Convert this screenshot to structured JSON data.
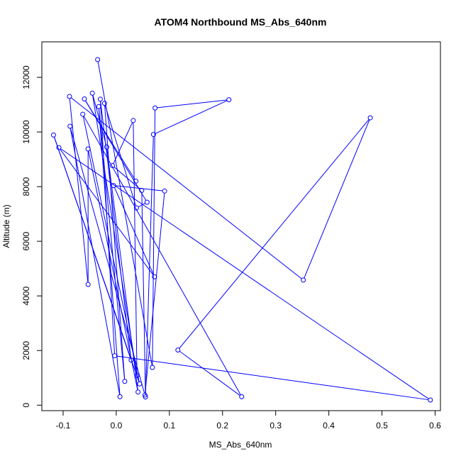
{
  "chart_data": {
    "type": "line",
    "title": "ATOM4 Northbound MS_Abs_640nm",
    "xlabel": "MS_Abs_640nm",
    "ylabel": "Altitude (m)",
    "xlim": [
      -0.14,
      0.61
    ],
    "ylim": [
      -200,
      13300
    ],
    "x_ticks": [
      -0.1,
      0.0,
      0.1,
      0.2,
      0.3,
      0.4,
      0.5,
      0.6
    ],
    "x_tick_labels": [
      "-0.1",
      "0.0",
      "0.1",
      "0.2",
      "0.3",
      "0.4",
      "0.5",
      "0.6"
    ],
    "y_ticks": [
      0,
      2000,
      4000,
      6000,
      8000,
      10000,
      12000
    ],
    "y_tick_labels": [
      "0",
      "2000",
      "4000",
      "6000",
      "8000",
      "10000",
      "12000"
    ],
    "grid": false,
    "series": [
      {
        "color": "#0000ff",
        "marker": "open-circle",
        "points": [
          [
            -0.035,
            12650
          ],
          [
            0.068,
            1380
          ],
          [
            0.073,
            10880
          ],
          [
            0.212,
            11180
          ],
          [
            0.07,
            9910
          ],
          [
            0.055,
            300
          ],
          [
            0.048,
            7860
          ],
          [
            -0.007,
            8770
          ],
          [
            0.032,
            10420
          ],
          [
            0.039,
            1080
          ],
          [
            -0.045,
            11420
          ],
          [
            -0.018,
            9450
          ],
          [
            0.041,
            480
          ],
          [
            -0.053,
            9380
          ],
          [
            -0.053,
            4420
          ],
          [
            -0.088,
            11300
          ],
          [
            0.352,
            4580
          ],
          [
            0.478,
            10520
          ],
          [
            0.116,
            2020
          ],
          [
            0.236,
            310
          ],
          [
            -0.063,
            10650
          ],
          [
            0.044,
            780
          ],
          [
            -0.118,
            9890
          ],
          [
            0.028,
            1650
          ],
          [
            -0.03,
            11200
          ],
          [
            -0.003,
            1810
          ],
          [
            0.591,
            190
          ],
          [
            -0.108,
            9430
          ],
          [
            0.072,
            4700
          ],
          [
            -0.005,
            8040
          ],
          [
            0.091,
            7840
          ],
          [
            0.054,
            370
          ],
          [
            -0.087,
            10210
          ],
          [
            0.007,
            310
          ],
          [
            -0.033,
            10930
          ],
          [
            0.016,
            870
          ],
          [
            -0.022,
            11050
          ],
          [
            0.038,
            7220
          ],
          [
            0.058,
            7430
          ],
          [
            -0.06,
            11210
          ],
          [
            0.037,
            8200
          ]
        ]
      }
    ]
  }
}
